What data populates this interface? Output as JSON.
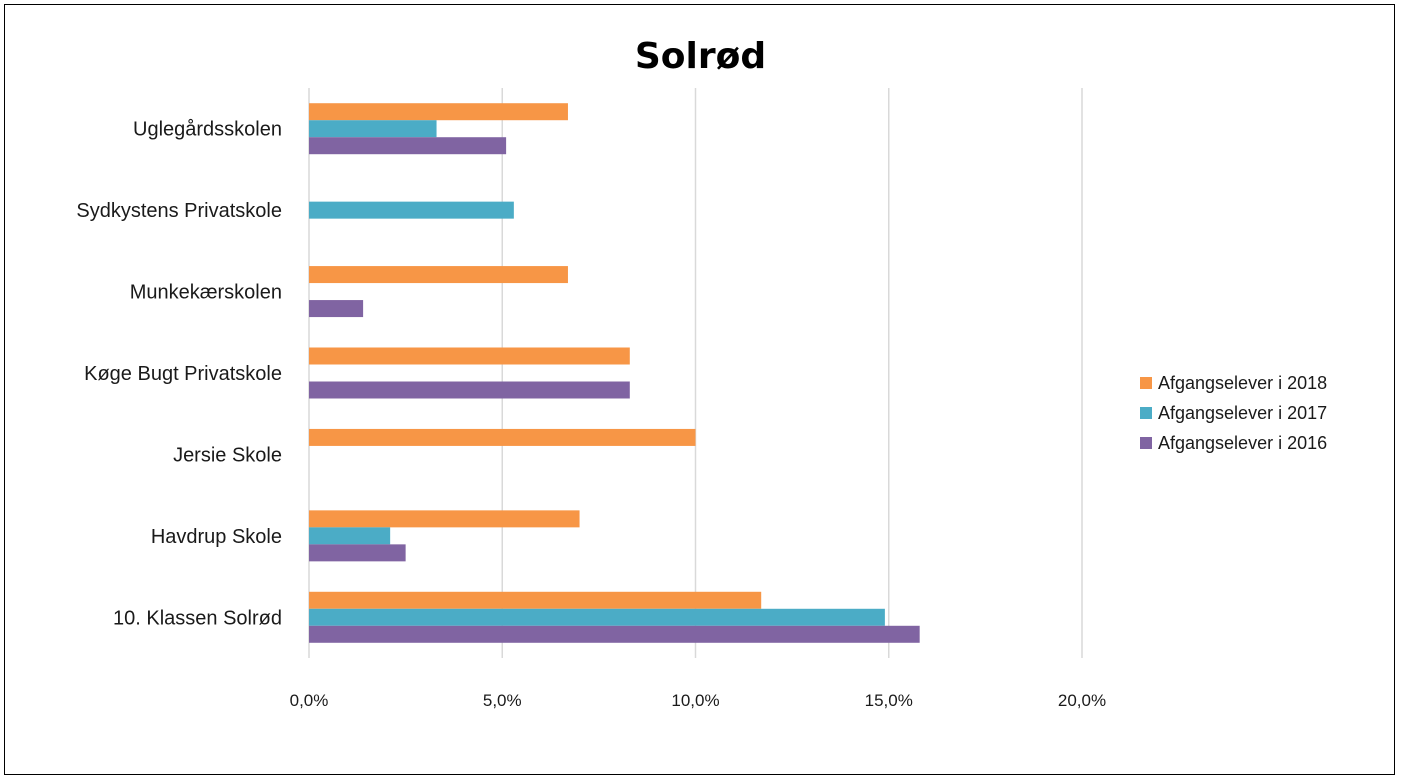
{
  "chart_data": {
    "type": "bar",
    "orientation": "horizontal",
    "title": "Solrød",
    "categories": [
      "Uglegårdsskolen",
      "Sydkystens Privatskole",
      "Munkekærskolen",
      "Køge Bugt Privatskole",
      "Jersie Skole",
      "Havdrup Skole",
      "10.  Klassen Solrød"
    ],
    "series": [
      {
        "name": "Afgangselever i 2018",
        "color": "#F79646",
        "values": [
          6.7,
          0,
          6.7,
          8.3,
          10.0,
          7.0,
          11.7
        ]
      },
      {
        "name": "Afgangselever i 2017",
        "color": "#4BACC6",
        "values": [
          3.3,
          5.3,
          0,
          0,
          0,
          2.1,
          14.9
        ]
      },
      {
        "name": "Afgangselever i 2016",
        "color": "#8064A2",
        "values": [
          5.1,
          0,
          1.4,
          8.3,
          0,
          2.5,
          15.8
        ]
      }
    ],
    "xlim": [
      0,
      20
    ],
    "x_ticks": [
      0,
      5,
      10,
      15,
      20
    ],
    "x_tick_labels": [
      "0,0%",
      "5,0%",
      "10,0%",
      "15,0%",
      "20,0%"
    ],
    "grid": "vertical",
    "legend_position": "right"
  }
}
